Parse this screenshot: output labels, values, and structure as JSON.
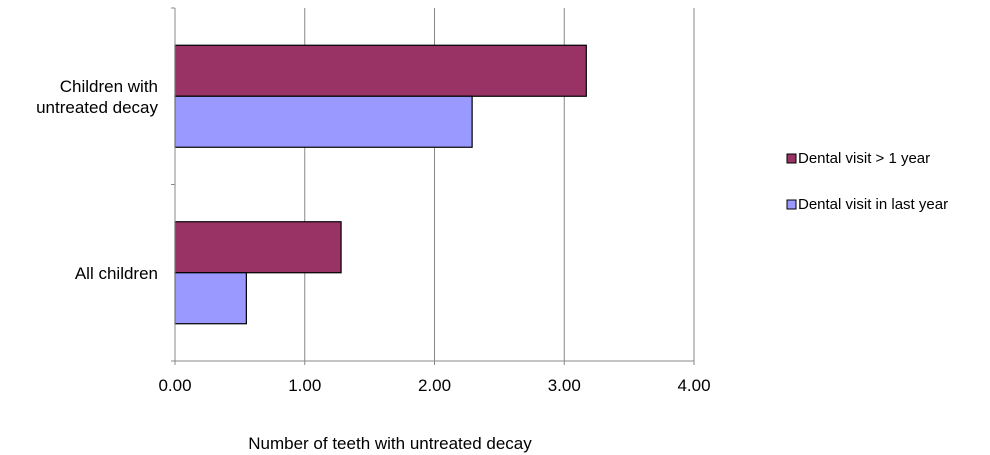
{
  "chart_data": {
    "type": "bar",
    "orientation": "horizontal",
    "categories": [
      "Children with untreated decay",
      "All children"
    ],
    "category_label_lines": [
      [
        "Children with",
        "untreated decay"
      ],
      [
        "All children"
      ]
    ],
    "series": [
      {
        "name": "Dental visit > 1 year",
        "values": [
          3.17,
          1.28
        ],
        "color": "#993366"
      },
      {
        "name": "Dental visit in last year",
        "values": [
          2.29,
          0.55
        ],
        "color": "#9999FF"
      }
    ],
    "xlabel": "Number of teeth with untreated decay",
    "ylabel": "",
    "xlim": [
      0,
      4
    ],
    "xticks": [
      "0.00",
      "1.00",
      "2.00",
      "3.00",
      "4.00"
    ],
    "grid": "vertical",
    "legend_position": "right"
  }
}
